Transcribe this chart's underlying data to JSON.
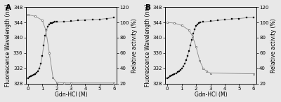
{
  "panel_A": {
    "label": "A",
    "fluorescence_x": [
      0,
      0.1,
      0.2,
      0.3,
      0.4,
      0.5,
      0.6,
      0.7,
      0.8,
      0.9,
      1.0,
      1.1,
      1.2,
      1.3,
      1.4,
      1.5,
      1.6,
      1.7,
      1.8,
      1.9,
      2.0,
      2.5,
      3.0,
      3.5,
      4.0,
      4.5,
      5.0,
      5.5,
      6.0
    ],
    "fluorescence_y": [
      329.5,
      329.8,
      330.0,
      330.2,
      330.4,
      330.6,
      330.9,
      331.3,
      332.0,
      333.2,
      335.2,
      338.0,
      340.5,
      342.0,
      343.0,
      343.5,
      343.8,
      343.9,
      344.0,
      344.1,
      344.1,
      344.2,
      344.3,
      344.5,
      344.6,
      344.7,
      344.8,
      345.0,
      345.2
    ],
    "activity_x": [
      0,
      0.5,
      1.0,
      1.25,
      1.5,
      1.75,
      2.0,
      2.5,
      3.0,
      6.0
    ],
    "activity_y": [
      110,
      108,
      103,
      90,
      60,
      28,
      22,
      21,
      21,
      21
    ],
    "ylim_left": [
      328,
      348
    ],
    "ylim_right": [
      20,
      120
    ],
    "yticks_left": [
      328,
      332,
      336,
      340,
      344,
      348
    ],
    "yticks_right": [
      20,
      40,
      60,
      80,
      100,
      120
    ],
    "xlim": [
      -0.15,
      6.2
    ],
    "xticks": [
      0,
      1,
      2,
      3,
      4,
      5,
      6
    ]
  },
  "panel_B": {
    "label": "B",
    "fluorescence_x": [
      0,
      0.1,
      0.2,
      0.3,
      0.4,
      0.5,
      0.6,
      0.7,
      0.8,
      0.9,
      1.0,
      1.1,
      1.2,
      1.3,
      1.4,
      1.5,
      1.6,
      1.7,
      1.8,
      1.9,
      2.0,
      2.1,
      2.2,
      2.3,
      2.5,
      3.0,
      3.5,
      4.0,
      4.5,
      5.0,
      5.5,
      6.0
    ],
    "fluorescence_y": [
      329.5,
      329.7,
      329.9,
      330.1,
      330.3,
      330.5,
      330.7,
      331.0,
      331.3,
      331.6,
      332.0,
      332.5,
      333.2,
      334.1,
      335.2,
      336.5,
      338.0,
      339.5,
      341.0,
      342.2,
      343.1,
      343.5,
      343.8,
      344.0,
      344.1,
      344.3,
      344.5,
      344.7,
      344.9,
      345.0,
      345.2,
      345.3
    ],
    "activity_x": [
      0,
      0.5,
      1.0,
      1.5,
      1.75,
      2.0,
      2.25,
      2.5,
      2.75,
      3.0,
      6.0
    ],
    "activity_y": [
      100,
      99,
      96,
      90,
      82,
      68,
      50,
      40,
      36,
      34,
      33
    ],
    "ylim_left": [
      328,
      348
    ],
    "ylim_right": [
      20,
      120
    ],
    "yticks_left": [
      328,
      332,
      336,
      340,
      344,
      348
    ],
    "yticks_right": [
      20,
      40,
      60,
      80,
      100,
      120
    ],
    "xlim": [
      -0.15,
      6.2
    ],
    "xticks": [
      0,
      1,
      2,
      3,
      4,
      5,
      6
    ]
  },
  "xlabel": "Gdn-HCl (M)",
  "ylabel_left": "Fluorescence Wavelength (nm)",
  "ylabel_right": "Relative activity (%)",
  "bg_color": "#e8e8e8",
  "line_color": "#888888",
  "tick_fontsize": 5.0,
  "label_fontsize": 5.5,
  "panel_label_fontsize": 7.5
}
